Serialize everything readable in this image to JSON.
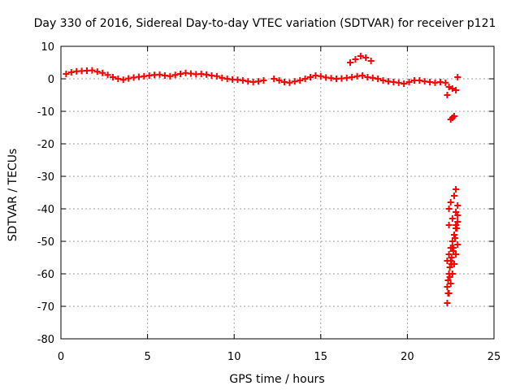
{
  "chart_data": {
    "type": "scatter",
    "title": "Day 330 of 2016, Sidereal Day-to-day VTEC variation (SDTVAR) for receiver p121",
    "xlabel": "GPS time / hours",
    "ylabel": "SDTVAR / TECUs",
    "xlim": [
      0,
      25
    ],
    "ylim": [
      -80,
      10
    ],
    "xticks": [
      0,
      5,
      10,
      15,
      20,
      25
    ],
    "yticks": [
      10,
      0,
      -10,
      -20,
      -30,
      -40,
      -50,
      -60,
      -70,
      -80
    ],
    "grid": true,
    "legend": "none",
    "marker": "plus",
    "series": [
      {
        "name": "SDTVAR",
        "color": "#ff0000",
        "x": [
          0.3,
          0.6,
          0.9,
          1.2,
          1.5,
          1.8,
          2.1,
          2.4,
          2.7,
          3.0,
          3.3,
          3.6,
          3.9,
          4.2,
          4.5,
          4.8,
          5.1,
          5.4,
          5.7,
          6.0,
          6.3,
          6.6,
          6.9,
          7.2,
          7.5,
          7.8,
          8.1,
          8.4,
          8.7,
          9.0,
          9.3,
          9.6,
          9.9,
          10.2,
          10.5,
          10.8,
          11.1,
          11.4,
          11.7,
          12.3,
          12.6,
          12.9,
          13.2,
          13.5,
          13.8,
          14.1,
          14.4,
          14.7,
          15.0,
          15.3,
          15.6,
          15.9,
          16.2,
          16.5,
          16.8,
          17.1,
          17.4,
          17.7,
          18.0,
          18.3,
          18.6,
          18.9,
          19.2,
          19.5,
          19.8,
          20.1,
          20.4,
          20.7,
          21.0,
          21.3,
          21.6,
          21.9,
          22.2,
          16.7,
          17.0,
          17.3,
          17.6,
          17.9,
          22.3,
          22.4,
          22.6,
          22.8,
          22.9,
          22.5,
          22.6,
          22.7,
          22.4,
          22.5,
          22.7,
          22.8,
          22.4,
          22.6,
          22.8,
          22.9,
          22.3,
          22.4,
          22.5,
          22.6,
          22.7,
          22.8,
          22.9,
          22.3,
          22.4,
          22.5,
          22.6,
          22.7,
          22.8,
          22.9,
          22.35,
          22.45,
          22.55,
          22.65,
          22.75,
          22.85,
          22.3,
          22.4,
          22.5,
          22.6,
          22.7,
          22.8,
          22.9,
          22.35,
          22.45,
          22.55,
          22.65,
          22.75
        ],
        "y": [
          1.5,
          2.0,
          2.3,
          2.4,
          2.5,
          2.6,
          2.2,
          1.8,
          1.2,
          0.5,
          0.0,
          -0.3,
          0.1,
          0.4,
          0.6,
          0.8,
          1.0,
          1.2,
          1.3,
          1.0,
          0.8,
          1.2,
          1.5,
          1.8,
          1.6,
          1.4,
          1.5,
          1.3,
          1.0,
          0.8,
          0.3,
          0.0,
          -0.2,
          -0.3,
          -0.5,
          -0.8,
          -1.0,
          -0.8,
          -0.5,
          0.0,
          -0.5,
          -1.0,
          -1.2,
          -0.8,
          -0.5,
          0.0,
          0.5,
          1.0,
          0.8,
          0.4,
          0.2,
          0.0,
          0.1,
          0.3,
          0.5,
          0.8,
          1.0,
          0.5,
          0.3,
          0.0,
          -0.5,
          -0.8,
          -1.0,
          -1.2,
          -1.5,
          -1.0,
          -0.5,
          -0.5,
          -0.8,
          -1.0,
          -1.2,
          -1.0,
          -1.2,
          5.0,
          6.0,
          7.0,
          6.5,
          5.5,
          -5.0,
          -2.5,
          -3.0,
          -3.5,
          0.5,
          -12.5,
          -12.0,
          -11.5,
          -40.0,
          -38.0,
          -36.0,
          -34.0,
          -45.0,
          -43.0,
          -41.0,
          -39.0,
          -56.0,
          -54.0,
          -52.0,
          -50.0,
          -48.0,
          -46.0,
          -44.0,
          -69.0,
          -66.0,
          -63.0,
          -60.0,
          -57.0,
          -54.0,
          -51.0,
          -62.0,
          -58.0,
          -55.0,
          -52.0,
          -49.0,
          -46.0,
          -64.0,
          -60.0,
          -56.0,
          -52.0,
          -48.0,
          -45.0,
          -42.0,
          -66.0,
          -61.0,
          -57.0,
          -53.0,
          -49.0
        ]
      }
    ]
  }
}
